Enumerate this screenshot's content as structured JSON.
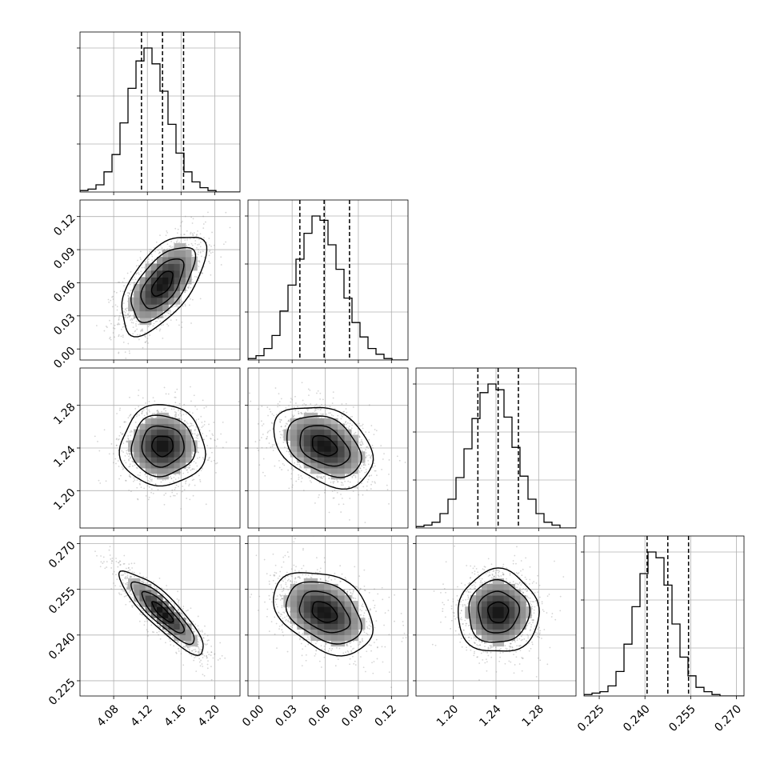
{
  "chart_data": {
    "type": "corner",
    "description_free": true,
    "n_params": 4,
    "params": [
      {
        "range": [
          4.04,
          4.23
        ],
        "ticks": [
          4.08,
          4.12,
          4.16,
          4.2
        ],
        "tick_labels": [
          "4.08",
          "4.12",
          "4.16",
          "4.20"
        ],
        "quantiles": [
          4.113,
          4.138,
          4.163
        ]
      },
      {
        "range": [
          -0.01,
          0.135
        ],
        "ticks": [
          0.0,
          0.03,
          0.06,
          0.09,
          0.12
        ],
        "tick_labels": [
          "0.00",
          "0.03",
          "0.06",
          "0.09",
          "0.12"
        ],
        "quantiles": [
          0.037,
          0.059,
          0.082
        ]
      },
      {
        "range": [
          1.165,
          1.315
        ],
        "ticks": [
          1.2,
          1.24,
          1.28
        ],
        "tick_labels": [
          "1.20",
          "1.24",
          "1.28"
        ],
        "quantiles": [
          1.223,
          1.242,
          1.261
        ]
      },
      {
        "range": [
          0.22,
          0.2725
        ],
        "ticks": [
          0.225,
          0.24,
          0.255,
          0.27
        ],
        "tick_labels": [
          "0.225",
          "0.240",
          "0.255",
          "0.270"
        ],
        "quantiles": [
          0.2407,
          0.2475,
          0.2543
        ]
      }
    ],
    "histograms": [
      {
        "edges_range": [
          4.04,
          4.23
        ],
        "counts": [
          1,
          2,
          5,
          14,
          26,
          48,
          72,
          91,
          100,
          89,
          70,
          47,
          27,
          14,
          7,
          3,
          1,
          0,
          0,
          0
        ]
      },
      {
        "edges_range": [
          -0.01,
          0.135
        ],
        "counts": [
          1,
          3,
          8,
          17,
          34,
          52,
          70,
          88,
          100,
          97,
          80,
          63,
          43,
          26,
          16,
          8,
          4,
          1,
          0,
          0
        ]
      },
      {
        "edges_range": [
          1.165,
          1.315
        ],
        "counts": [
          1,
          2,
          4,
          10,
          20,
          35,
          55,
          76,
          94,
          100,
          96,
          77,
          56,
          36,
          20,
          10,
          4,
          2,
          0,
          0
        ]
      },
      {
        "edges_range": [
          0.22,
          0.2725
        ],
        "counts": [
          1,
          2,
          3,
          7,
          17,
          36,
          62,
          85,
          100,
          96,
          77,
          50,
          27,
          14,
          6,
          3,
          1,
          0,
          0,
          0
        ]
      }
    ],
    "correlations": {
      "1-0": 0.6,
      "2-0": 0.0,
      "2-1": -0.35,
      "3-0": -0.87,
      "3-1": -0.35,
      "3-2": 0.0
    },
    "grid": true,
    "contour_levels": [
      0.5,
      1.0,
      1.5,
      2.0
    ]
  }
}
